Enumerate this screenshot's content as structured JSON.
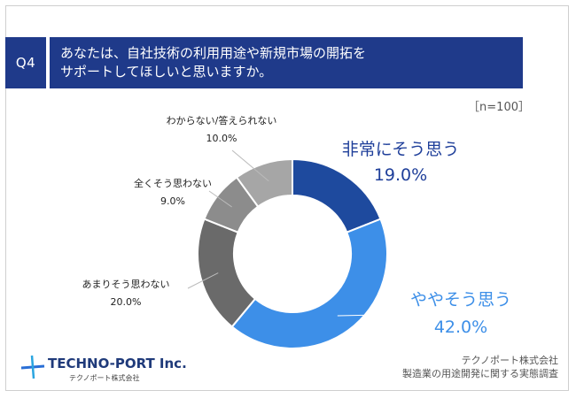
{
  "question": {
    "badge": "Q4",
    "line1": "あなたは、自社技術の利用用途や新規市場の開拓を",
    "line2": "サポートしてほしいと思いますか。"
  },
  "sample_note": "［n=100］",
  "colors": {
    "banner": "#1f3a8a",
    "slice_1": "#1e4a9e",
    "slice_2": "#3d8fe8",
    "slice_3": "#6a6a6a",
    "slice_4": "#8c8c8c",
    "slice_5": "#a6a6a6"
  },
  "chart_data": {
    "type": "pie",
    "style": "donut",
    "categories": [
      "非常にそう思う",
      "ややそう思う",
      "あまりそう思わない",
      "全くそう思わない",
      "わからない/答えられない"
    ],
    "values": [
      19.0,
      42.0,
      20.0,
      9.0,
      10.0
    ],
    "value_labels": [
      "19.0%",
      "42.0%",
      "20.0%",
      "9.0%",
      "10.0%"
    ],
    "unit": "%"
  },
  "footer": {
    "brand": "TECHNO-PORT Inc.",
    "brand_sub": "テクノポート株式会社",
    "source_line1": "テクノポート株式会社",
    "source_line2": "製造業の用途開発に関する実態調査"
  }
}
